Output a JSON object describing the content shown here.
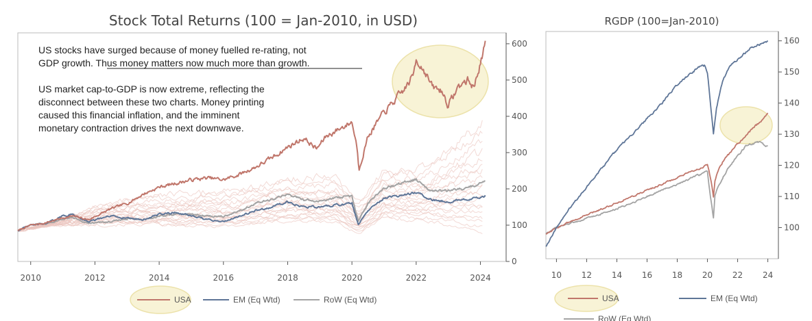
{
  "colors": {
    "usa": "#c0766b",
    "em": "#5e7597",
    "row": "#a3a3a3",
    "faint": "#ebc4be",
    "highlight_fill": "#f8f3d6",
    "highlight_stroke": "#ece2aa",
    "axis": "#555555"
  },
  "chart_data": [
    {
      "type": "line",
      "title": "Stock Total Returns (100 = Jan-2010, in USD)",
      "y_axis_side": "right",
      "xlim": [
        2009.6,
        2024.8
      ],
      "ylim": [
        0,
        630
      ],
      "x_ticks": [
        2010,
        2012,
        2014,
        2016,
        2018,
        2020,
        2022,
        2024
      ],
      "y_ticks": [
        0,
        100,
        200,
        300,
        400,
        500,
        600
      ],
      "legend": "bottom-center",
      "annotations": [
        {
          "label": "note-1",
          "lines": [
            "US stocks have surged because of money fuelled re-rating, not",
            "GDP growth. Thus money matters now much more than growth."
          ],
          "underlined": "Thus money matters now much more than growth"
        },
        {
          "label": "note-2",
          "lines": [
            "US market cap-to-GDP is now extreme, reflecting the",
            "disconnect between these two charts. Money printing",
            "caused this financial inflation, and the imminent",
            "monetary contraction drives the next downwave."
          ]
        }
      ],
      "series": [
        {
          "name": "USA",
          "color_key": "usa",
          "x": [
            2009.6,
            2010.0,
            2010.4,
            2011.0,
            2011.3,
            2011.8,
            2012.5,
            2013.0,
            2013.5,
            2014.0,
            2014.5,
            2015.0,
            2015.5,
            2016.0,
            2016.5,
            2017.0,
            2017.5,
            2018.0,
            2018.5,
            2018.9,
            2019.2,
            2019.5,
            2020.0,
            2020.15,
            2020.22,
            2020.5,
            2020.8,
            2021.0,
            2021.3,
            2021.6,
            2021.9,
            2022.0,
            2022.3,
            2022.5,
            2022.8,
            2023.0,
            2023.3,
            2023.6,
            2023.8,
            2024.0,
            2024.15
          ],
          "y": [
            85,
            100,
            105,
            120,
            125,
            115,
            145,
            160,
            185,
            205,
            215,
            225,
            230,
            225,
            240,
            260,
            285,
            315,
            340,
            310,
            345,
            360,
            385,
            320,
            255,
            345,
            385,
            410,
            440,
            470,
            510,
            560,
            520,
            480,
            470,
            430,
            480,
            500,
            480,
            550,
            595
          ]
        },
        {
          "name": "EM (Eq Wtd)",
          "color_key": "em",
          "x": [
            2009.6,
            2010.0,
            2010.5,
            2011.0,
            2011.3,
            2011.8,
            2012.5,
            2013.0,
            2013.5,
            2014.0,
            2014.5,
            2015.0,
            2015.5,
            2016.0,
            2016.5,
            2017.0,
            2017.5,
            2018.0,
            2018.5,
            2019.0,
            2019.5,
            2020.0,
            2020.2,
            2020.5,
            2021.0,
            2021.5,
            2022.0,
            2022.5,
            2023.0,
            2023.5,
            2024.0,
            2024.15
          ],
          "y": [
            85,
            100,
            105,
            125,
            130,
            110,
            125,
            120,
            115,
            130,
            135,
            125,
            115,
            110,
            125,
            140,
            150,
            165,
            150,
            150,
            155,
            160,
            100,
            140,
            175,
            180,
            190,
            170,
            165,
            170,
            175,
            180
          ]
        },
        {
          "name": "RoW (Eq Wtd)",
          "color_key": "row",
          "x": [
            2009.6,
            2010.0,
            2010.5,
            2011.0,
            2011.3,
            2011.8,
            2012.5,
            2013.0,
            2013.5,
            2014.0,
            2014.5,
            2015.0,
            2015.5,
            2016.0,
            2016.5,
            2017.0,
            2017.5,
            2018.0,
            2018.5,
            2019.0,
            2019.5,
            2020.0,
            2020.2,
            2020.5,
            2021.0,
            2021.5,
            2022.0,
            2022.5,
            2023.0,
            2023.5,
            2024.0,
            2024.15
          ],
          "y": [
            85,
            100,
            105,
            118,
            122,
            105,
            110,
            118,
            115,
            125,
            130,
            130,
            125,
            125,
            140,
            160,
            170,
            185,
            170,
            165,
            175,
            180,
            110,
            160,
            200,
            215,
            225,
            195,
            195,
            200,
            215,
            225
          ]
        }
      ]
    },
    {
      "type": "line",
      "title": "RGDP (100=Jan-2010)",
      "y_axis_side": "right",
      "xlim": [
        9.3,
        24.7
      ],
      "ylim": [
        90,
        163
      ],
      "x_ticks": [
        10,
        12,
        14,
        16,
        18,
        20,
        22,
        24
      ],
      "y_ticks": [
        100,
        110,
        120,
        130,
        140,
        150,
        160
      ],
      "legend": "bottom",
      "series": [
        {
          "name": "USA",
          "color_key": "usa",
          "x": [
            9.3,
            10,
            11,
            12,
            13,
            14,
            15,
            16,
            17,
            18,
            19,
            19.7,
            20.0,
            20.25,
            20.4,
            20.5,
            20.7,
            21.0,
            21.5,
            22.0,
            22.5,
            23.0,
            23.5,
            24.0
          ],
          "y": [
            98,
            100,
            102,
            104,
            106,
            108,
            110,
            112,
            114,
            116,
            118,
            119.5,
            120,
            115,
            110,
            115,
            118,
            121,
            124,
            127,
            129,
            132,
            134,
            137
          ]
        },
        {
          "name": "EM (Eq Wtd)",
          "color_key": "em",
          "x": [
            9.3,
            10,
            11,
            12,
            13,
            14,
            15,
            16,
            17,
            18,
            19,
            19.5,
            19.8,
            20.0,
            20.2,
            20.4,
            20.6,
            20.8,
            21.0,
            21.5,
            22.0,
            22.5,
            23.0,
            23.5,
            24.0
          ],
          "y": [
            94,
            100,
            107,
            113,
            119,
            125,
            130,
            135,
            140,
            146,
            150,
            152,
            152,
            150,
            140,
            130,
            138,
            143,
            147,
            152,
            154,
            156,
            158,
            159,
            160
          ]
        },
        {
          "name": "RoW (Eq Wtd)",
          "color_key": "row",
          "x": [
            9.3,
            10,
            11,
            12,
            13,
            14,
            15,
            16,
            17,
            18,
            19,
            19.5,
            20.0,
            20.2,
            20.4,
            20.5,
            20.7,
            21.0,
            21.5,
            22.0,
            22.5,
            23.0,
            23.5,
            24.0
          ],
          "y": [
            98,
            100,
            101.5,
            103,
            104.5,
            106,
            108,
            110,
            112,
            114,
            116,
            117,
            118,
            110,
            103,
            110,
            113,
            116,
            120,
            123,
            126,
            127,
            127.5,
            126
          ]
        }
      ]
    }
  ]
}
